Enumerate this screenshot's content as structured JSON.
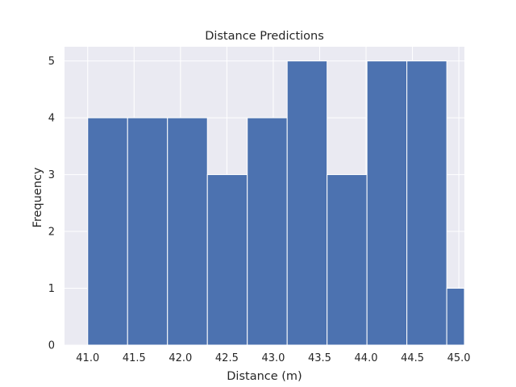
{
  "chart_data": {
    "type": "bar",
    "title": "Distance Predictions",
    "xlabel": "Distance (m)",
    "ylabel": "Frequency",
    "bins": [
      {
        "start": 41.0,
        "end": 41.43,
        "count": 4
      },
      {
        "start": 41.43,
        "end": 41.86,
        "count": 4
      },
      {
        "start": 41.86,
        "end": 42.29,
        "count": 4
      },
      {
        "start": 42.29,
        "end": 42.72,
        "count": 3
      },
      {
        "start": 42.72,
        "end": 43.15,
        "count": 4
      },
      {
        "start": 43.15,
        "end": 43.58,
        "count": 5
      },
      {
        "start": 43.58,
        "end": 44.01,
        "count": 3
      },
      {
        "start": 44.01,
        "end": 44.44,
        "count": 5
      },
      {
        "start": 44.44,
        "end": 44.87,
        "count": 5
      },
      {
        "start": 44.87,
        "end": 45.3,
        "count": 1
      }
    ],
    "xlim": [
      40.75,
      45.06
    ],
    "ylim": [
      0,
      5.25
    ],
    "xticks": [
      41.0,
      41.5,
      42.0,
      42.5,
      43.0,
      43.5,
      44.0,
      44.5,
      45.0
    ],
    "xtick_labels": [
      "41.0",
      "41.5",
      "42.0",
      "42.5",
      "43.0",
      "43.5",
      "44.0",
      "44.5",
      "45.0"
    ],
    "yticks": [
      0,
      1,
      2,
      3,
      4,
      5
    ],
    "ytick_labels": [
      "0",
      "1",
      "2",
      "3",
      "4",
      "5"
    ],
    "grid": true,
    "colors": {
      "bar": "#4c72b0",
      "bar_edge": "#ffffff",
      "plot_background": "#eaeaf2",
      "grid": "#ffffff"
    }
  }
}
